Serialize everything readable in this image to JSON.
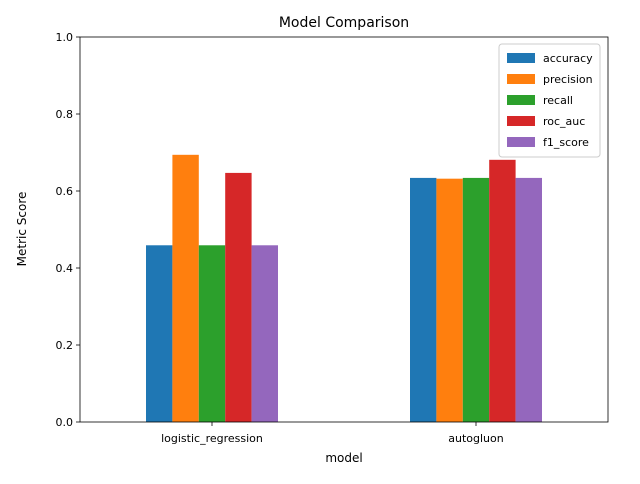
{
  "chart_data": {
    "type": "bar",
    "title": "Model Comparison",
    "xlabel": "model",
    "ylabel": "Metric Score",
    "ylim": [
      0,
      1.0
    ],
    "yticks": [
      "0.0",
      "0.2",
      "0.4",
      "0.6",
      "0.8",
      "1.0"
    ],
    "ytick_values": [
      0,
      0.2,
      0.4,
      0.6,
      0.8,
      1.0
    ],
    "categories": [
      "logistic_regression",
      "autogluon"
    ],
    "grid": false,
    "legend_position": "top-right",
    "series": [
      {
        "name": "accuracy",
        "color": "#1f77b4",
        "values": [
          0.459,
          0.634
        ]
      },
      {
        "name": "precision",
        "color": "#ff7f0e",
        "values": [
          0.694,
          0.632
        ]
      },
      {
        "name": "recall",
        "color": "#2ca02c",
        "values": [
          0.459,
          0.634
        ]
      },
      {
        "name": "roc_auc",
        "color": "#d62728",
        "values": [
          0.647,
          0.681
        ]
      },
      {
        "name": "f1_score",
        "color": "#9467bd",
        "values": [
          0.459,
          0.634
        ]
      }
    ]
  }
}
